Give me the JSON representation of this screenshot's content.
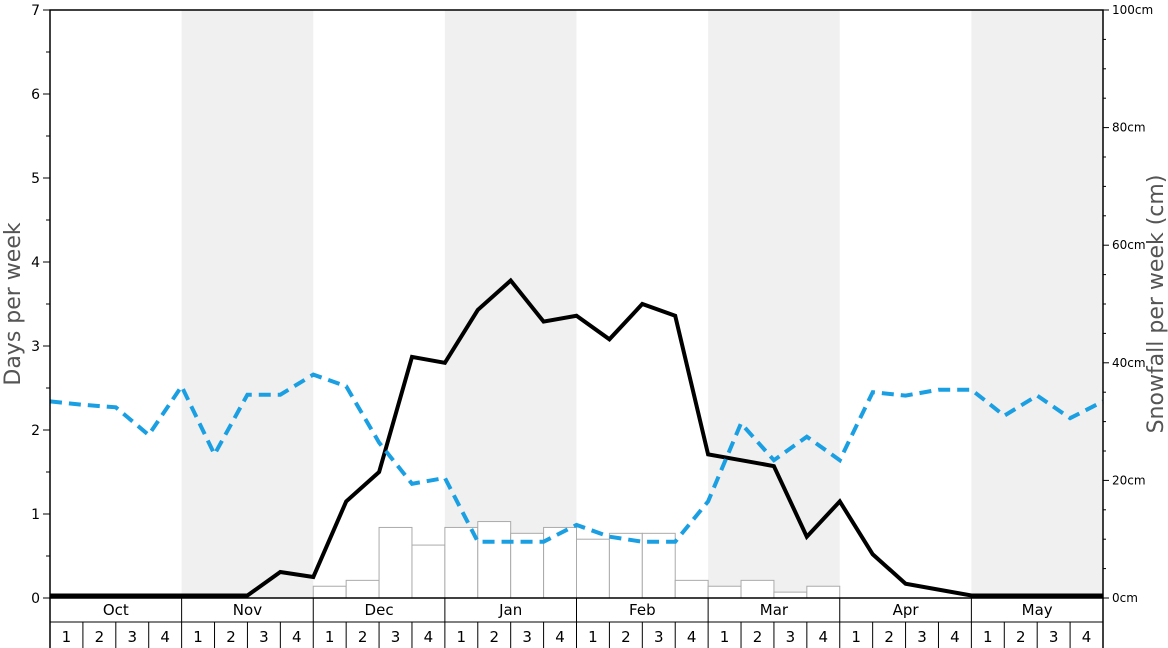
{
  "chart_data": {
    "type": "bar",
    "y_left_label": "Days per week",
    "y_right_label": "Snowfall per week (cm)",
    "y_left_range": [
      0,
      7
    ],
    "y_left_ticks": [
      "0",
      "1",
      "2",
      "3",
      "4",
      "5",
      "6",
      "7"
    ],
    "y_right_range": [
      0,
      100
    ],
    "y_right_ticks": [
      "0cm",
      "20cm",
      "40cm",
      "60cm",
      "80cm",
      "100cm"
    ],
    "months": [
      "Oct",
      "Nov",
      "Dec",
      "Jan",
      "Feb",
      "Mar",
      "Apr",
      "May"
    ],
    "week_labels": [
      "1",
      "2",
      "3",
      "4"
    ],
    "colors": {
      "stripe": "#f0f0f0",
      "solid_line": "#000000",
      "dashed_line": "#1a9fe3",
      "bar_fill": "#ffffff",
      "bar_stroke": "#aaaaaa"
    },
    "series": [
      {
        "type": "bar",
        "axis": "right",
        "values": [
          0,
          0,
          0,
          0,
          0,
          0,
          0,
          0,
          2,
          3,
          12,
          9,
          12,
          13,
          11,
          12,
          10,
          11,
          11,
          3,
          2,
          3,
          1,
          2,
          0,
          0,
          0,
          0,
          0,
          0,
          0,
          0
        ]
      },
      {
        "type": "line",
        "style": "solid",
        "axis": "left",
        "values": [
          0.03,
          0.03,
          0.03,
          0.03,
          0.03,
          0.03,
          0.03,
          0.31,
          0.25,
          1.15,
          1.5,
          2.87,
          2.8,
          3.43,
          3.78,
          3.29,
          3.36,
          3.08,
          3.5,
          3.36,
          1.71,
          1.64,
          1.57,
          0.73,
          1.15,
          0.52,
          0.17,
          0.1,
          0.03,
          0.03,
          0.03,
          0.03,
          0.03
        ]
      },
      {
        "type": "line",
        "style": "dashed",
        "axis": "left",
        "values": [
          2.34,
          2.3,
          2.27,
          1.94,
          2.52,
          1.71,
          2.42,
          2.42,
          2.66,
          2.52,
          1.85,
          1.36,
          1.43,
          0.67,
          0.67,
          0.67,
          0.87,
          0.73,
          0.67,
          0.67,
          1.15,
          2.08,
          1.64,
          1.92,
          1.64,
          2.45,
          2.41,
          2.48,
          2.48,
          2.17,
          2.41,
          2.14,
          2.34
        ]
      }
    ]
  }
}
